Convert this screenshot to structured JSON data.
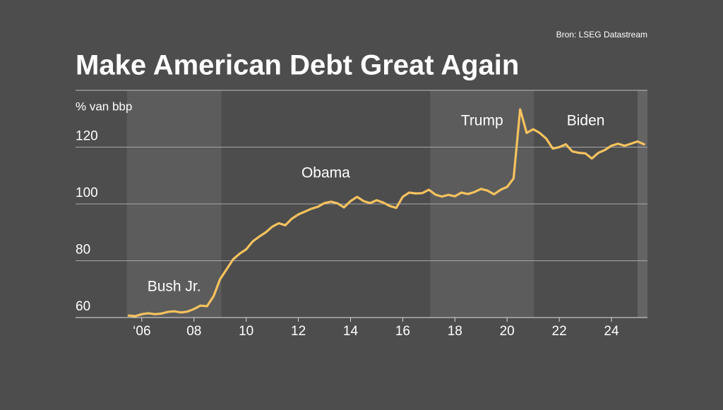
{
  "chart_data": {
    "type": "line",
    "title": "Make American Debt Great Again",
    "source": "Bron: LSEG Datastream",
    "y_label": "% van bbp",
    "color": "#f5c25e",
    "x": [
      2005.5,
      2005.75,
      2006,
      2006.25,
      2006.5,
      2006.75,
      2007,
      2007.25,
      2007.5,
      2007.75,
      2008,
      2008.25,
      2008.5,
      2008.75,
      2009,
      2009.25,
      2009.5,
      2009.75,
      2010,
      2010.25,
      2010.5,
      2010.75,
      2011,
      2011.25,
      2011.5,
      2011.75,
      2012,
      2012.25,
      2012.5,
      2012.75,
      2013,
      2013.25,
      2013.5,
      2013.75,
      2014,
      2014.25,
      2014.5,
      2014.75,
      2015,
      2015.25,
      2015.5,
      2015.75,
      2016,
      2016.25,
      2016.5,
      2016.75,
      2017,
      2017.25,
      2017.5,
      2017.75,
      2018,
      2018.25,
      2018.5,
      2018.75,
      2019,
      2019.25,
      2019.5,
      2019.75,
      2020,
      2020.25,
      2020.5,
      2020.75,
      2021,
      2021.25,
      2021.5,
      2021.75,
      2022,
      2022.25,
      2022.5,
      2022.75,
      2023,
      2023.25,
      2023.5,
      2023.75,
      2024,
      2024.25,
      2024.5,
      2024.75,
      2025,
      2025.25
    ],
    "values": [
      60.7,
      60.5,
      61.2,
      61.5,
      61.2,
      61.4,
      62.0,
      62.2,
      61.8,
      62.1,
      63.0,
      64.2,
      64.0,
      67.5,
      73.5,
      77.0,
      80.5,
      82.5,
      84.0,
      86.8,
      88.5,
      90.0,
      92.0,
      93.2,
      92.5,
      94.8,
      96.3,
      97.3,
      98.3,
      99.0,
      100.3,
      100.8,
      100.2,
      98.8,
      101.0,
      102.5,
      101.0,
      100.3,
      101.3,
      100.5,
      99.3,
      98.6,
      102.5,
      104.0,
      103.7,
      103.8,
      105.0,
      103.3,
      102.6,
      103.2,
      102.7,
      104.0,
      103.5,
      104.2,
      105.3,
      104.7,
      103.4,
      105.0,
      106.0,
      109.0,
      133.3,
      125.0,
      126.3,
      125.0,
      123.0,
      119.5,
      120.0,
      121.0,
      118.5,
      118.0,
      117.8,
      116.0,
      118.0,
      119.0,
      120.5,
      121.2,
      120.5,
      121.2,
      122.0,
      121.0
    ],
    "periods": [
      {
        "name": "Bush Jr.",
        "start": 2005.43,
        "end": 2009.05,
        "shaded": true
      },
      {
        "name": "Obama",
        "start": 2009.05,
        "end": 2017.05,
        "shaded": false
      },
      {
        "name": "Trump",
        "start": 2017.05,
        "end": 2021.03,
        "shaded": true
      },
      {
        "name": "Biden",
        "start": 2021.03,
        "end": 2025.0,
        "shaded": false
      },
      {
        "start": 2025.0,
        "end": 2025.38,
        "shaded": true
      }
    ],
    "xlim": [
      2003.46,
      2025.38
    ],
    "ylim": [
      60,
      140
    ],
    "yticks": [
      60,
      80,
      100,
      120
    ],
    "xticks": [
      {
        "value": 2006,
        "label": "‘06"
      },
      {
        "value": 2008,
        "label": "08"
      },
      10,
      12,
      14,
      16,
      18,
      20,
      22,
      24
    ],
    "grid": true
  }
}
